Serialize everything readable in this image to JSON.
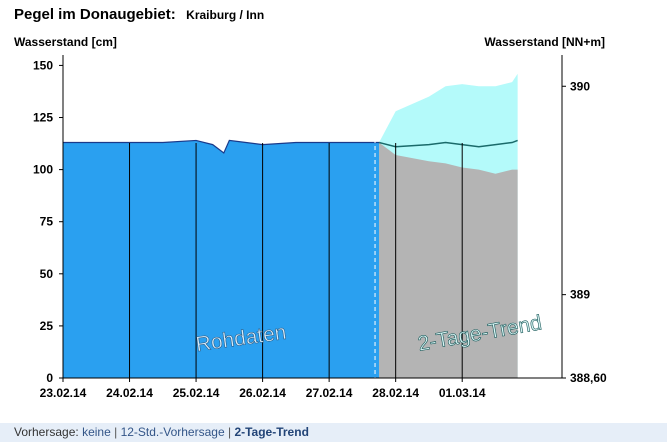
{
  "header": {
    "title": "Pegel im Donaugebiet:",
    "station": "Kraiburg / Inn",
    "ylabel_left": "Wasserstand  [cm]",
    "ylabel_right": "Wasserstand  [NN+m]"
  },
  "chart_data": {
    "type": "area",
    "title": "Pegel im Donaugebiet:",
    "ylabel": "Wasserstand  [cm]",
    "ylabel_right": "Wasserstand  [NN+m]",
    "ylim": [
      0,
      155
    ],
    "yticks": [
      0,
      25,
      50,
      75,
      100,
      125,
      150
    ],
    "right_ylim": [
      388.6,
      389.35
    ],
    "right_ticks": [
      {
        "label": "390",
        "cm": 140
      },
      {
        "label": "389",
        "cm": 40
      },
      {
        "label": "388,60",
        "cm": 0
      }
    ],
    "x_start": "2014-02-23",
    "x_end": "2014-03-02T12:00",
    "xticks": [
      "23.02.14",
      "24.02.14",
      "25.02.14",
      "26.02.14",
      "27.02.14",
      "28.02.14",
      "01.03.14"
    ],
    "annotations": [
      "Rohdaten",
      "2-Tage-Trend"
    ],
    "series": [
      {
        "name": "Rohdaten",
        "color": "#2aa0f0",
        "x": [
          "2014-02-23T00:00",
          "2014-02-23T12:00",
          "2014-02-24T00:00",
          "2014-02-24T12:00",
          "2014-02-25T00:00",
          "2014-02-25T06:00",
          "2014-02-25T10:00",
          "2014-02-25T12:00",
          "2014-02-25T18:00",
          "2014-02-26T00:00",
          "2014-02-26T12:00",
          "2014-02-27T00:00",
          "2014-02-27T12:00",
          "2014-02-27T18:00"
        ],
        "values": [
          113,
          113,
          113,
          113,
          114,
          112,
          108,
          114,
          113,
          112,
          113,
          113,
          113,
          113
        ]
      },
      {
        "name": "2-Tage-Trend",
        "color": "#b4b4b4",
        "x": [
          "2014-02-27T18:00",
          "2014-02-28T00:00",
          "2014-02-28T12:00",
          "2014-02-28T18:00",
          "2014-03-01T00:00",
          "2014-03-01T06:00",
          "2014-03-01T12:00",
          "2014-03-01T18:00",
          "2014-03-01T20:00"
        ],
        "median": [
          113,
          111,
          112,
          113,
          112,
          111,
          112,
          113,
          114
        ],
        "lower": [
          113,
          107,
          104,
          103,
          101,
          100,
          98,
          100,
          100
        ],
        "upper": [
          113,
          128,
          135,
          140,
          141,
          140,
          140,
          142,
          146
        ],
        "band_color": "#b4fafa",
        "median_color": "#1a6a6a"
      }
    ]
  },
  "footer": {
    "prefix": "Vorhersage:",
    "links": [
      "keine",
      "12-Std.-Vorhersage",
      "2-Tage-Trend"
    ]
  }
}
